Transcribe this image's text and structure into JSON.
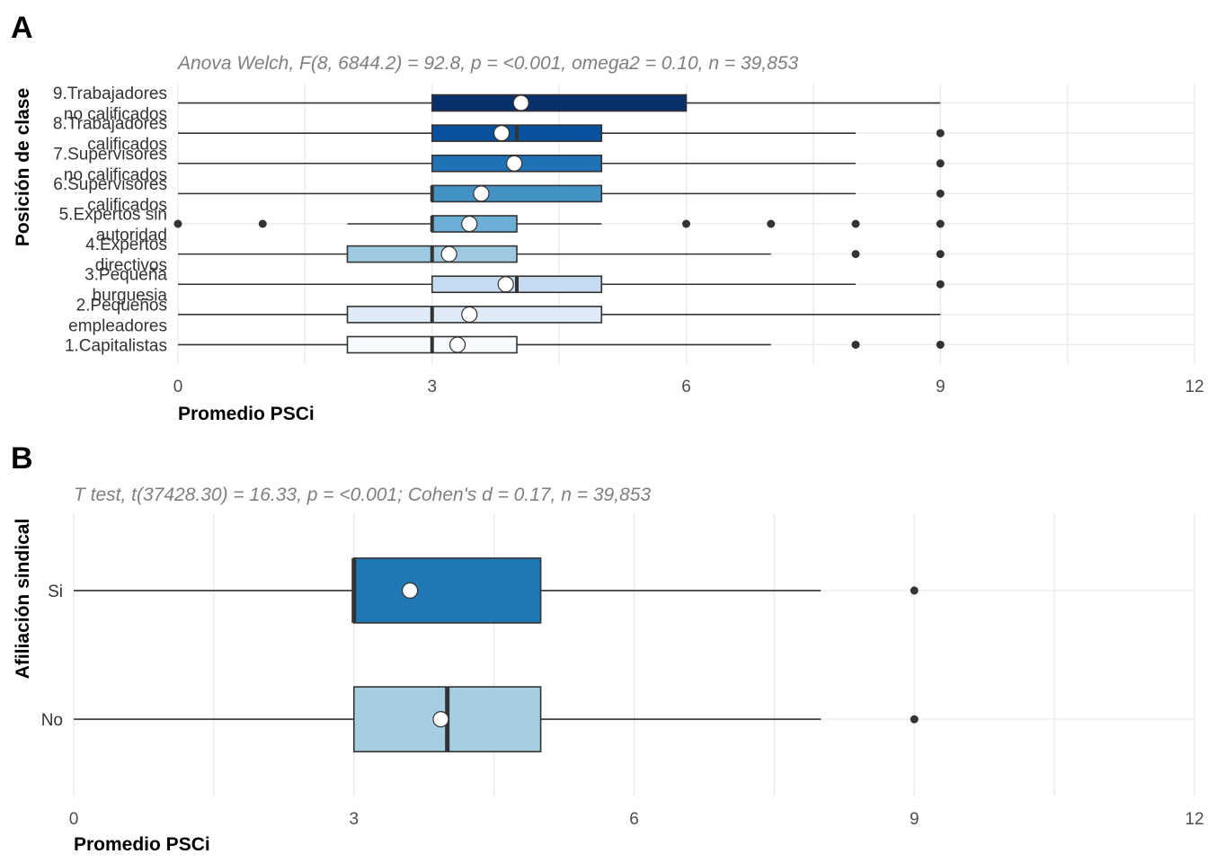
{
  "panels": [
    {
      "tag": "A",
      "subtitle": "Anova Welch, F(8, 6844.2) = 92.8, p = <0.001, omega2 = 0.10, n = 39,853",
      "xlabel": "Promedio PSCi",
      "ylabel": "Posición de clase"
    },
    {
      "tag": "B",
      "subtitle": "T test, t(37428.30) = 16.33, p = <0.001; Cohen's d = 0.17, n = 39,853",
      "xlabel": "Promedio PSCi",
      "ylabel": "Afiliación sindical"
    }
  ],
  "chart_data": [
    {
      "type": "boxplot",
      "orientation": "horizontal",
      "title": "Anova Welch, F(8, 6844.2) = 92.8, p = <0.001, omega2 = 0.10, n = 39,853",
      "xlabel": "Promedio PSCi",
      "ylabel": "Posición de clase",
      "xlim": [
        0,
        12
      ],
      "xticks": [
        0,
        3,
        6,
        9,
        12
      ],
      "grid": true,
      "legend": "none",
      "categories": [
        "1.Capitalistas",
        "2.Pequeños empleadores",
        "3.Pequeña burguesia",
        "4.Expertos directivos",
        "5.Expertos sin autoridad",
        "6.Supervisores calificados",
        "7.Supervisores no calificados",
        "8.Trabajadores calificados",
        "9.Trabajadores no calificados"
      ],
      "category_label_lines": [
        [
          "1.Capitalistas"
        ],
        [
          "2.Pequeños",
          "empleadores"
        ],
        [
          "3.Pequeña",
          "burguesia"
        ],
        [
          "4.Expertos",
          "directivos"
        ],
        [
          "5.Expertos sin",
          "autoridad"
        ],
        [
          "6.Supervisores",
          "calificados"
        ],
        [
          "7.Supervisores",
          "no calificados"
        ],
        [
          "8.Trabajadores",
          "calificados"
        ],
        [
          "9.Trabajadores",
          "no calificados"
        ]
      ],
      "boxes": [
        {
          "category": "1.Capitalistas",
          "whisker_low": 0,
          "q1": 2,
          "median": 3,
          "q3": 4,
          "whisker_high": 7,
          "mean": 3.3,
          "outliers": [
            8,
            9
          ],
          "fill": "#f7fbff"
        },
        {
          "category": "2.Pequeños empleadores",
          "whisker_low": 0,
          "q1": 2,
          "median": 3,
          "q3": 5,
          "whisker_high": 9,
          "mean": 3.44,
          "outliers": [],
          "fill": "#deebf7"
        },
        {
          "category": "3.Pequeña burguesia",
          "whisker_low": 0,
          "q1": 3,
          "median": 4,
          "q3": 5,
          "whisker_high": 8,
          "mean": 3.87,
          "outliers": [
            9
          ],
          "fill": "#c6dbef"
        },
        {
          "category": "4.Expertos directivos",
          "whisker_low": 0,
          "q1": 2,
          "median": 3,
          "q3": 4,
          "whisker_high": 7,
          "mean": 3.2,
          "outliers": [
            8,
            9
          ],
          "fill": "#9ecae1"
        },
        {
          "category": "5.Expertos sin autoridad",
          "whisker_low": 2,
          "q1": 3,
          "median": 3,
          "q3": 4,
          "whisker_high": 5,
          "mean": 3.44,
          "outliers": [
            0,
            1,
            6,
            7,
            8,
            9
          ],
          "fill": "#6baed6"
        },
        {
          "category": "6.Supervisores calificados",
          "whisker_low": 0,
          "q1": 3,
          "median": 3,
          "q3": 5,
          "whisker_high": 8,
          "mean": 3.58,
          "outliers": [
            9
          ],
          "fill": "#4292c6"
        },
        {
          "category": "7.Supervisores no calificados",
          "whisker_low": 0,
          "q1": 3,
          "median": 4,
          "q3": 5,
          "whisker_high": 8,
          "mean": 3.97,
          "outliers": [
            9
          ],
          "fill": "#2171b5"
        },
        {
          "category": "8.Trabajadores calificados",
          "whisker_low": 0,
          "q1": 3,
          "median": 4,
          "q3": 5,
          "whisker_high": 8,
          "mean": 3.82,
          "outliers": [
            9
          ],
          "fill": "#08519c"
        },
        {
          "category": "9.Trabajadores no calificados",
          "whisker_low": 0,
          "q1": 3,
          "median": 4,
          "q3": 6,
          "whisker_high": 9,
          "mean": 4.05,
          "outliers": [],
          "fill": "#08306b"
        }
      ]
    },
    {
      "type": "boxplot",
      "orientation": "horizontal",
      "title": "T test, t(37428.30) = 16.33, p = <0.001; Cohen's d = 0.17, n = 39,853",
      "xlabel": "Promedio PSCi",
      "ylabel": "Afiliación sindical",
      "xlim": [
        0,
        12
      ],
      "xticks": [
        0,
        3,
        6,
        9,
        12
      ],
      "grid": true,
      "legend": "none",
      "categories": [
        "No",
        "Si"
      ],
      "category_label_lines": [
        [
          "No"
        ],
        [
          "Si"
        ]
      ],
      "boxes": [
        {
          "category": "No",
          "whisker_low": 0,
          "q1": 3,
          "median": 4,
          "q3": 5,
          "whisker_high": 8,
          "mean": 3.93,
          "outliers": [
            9
          ],
          "fill": "#a6cee3"
        },
        {
          "category": "Si",
          "whisker_low": 0,
          "q1": 3,
          "median": 3,
          "q3": 5,
          "whisker_high": 8,
          "mean": 3.6,
          "outliers": [
            9
          ],
          "fill": "#1f78b4"
        }
      ]
    }
  ]
}
